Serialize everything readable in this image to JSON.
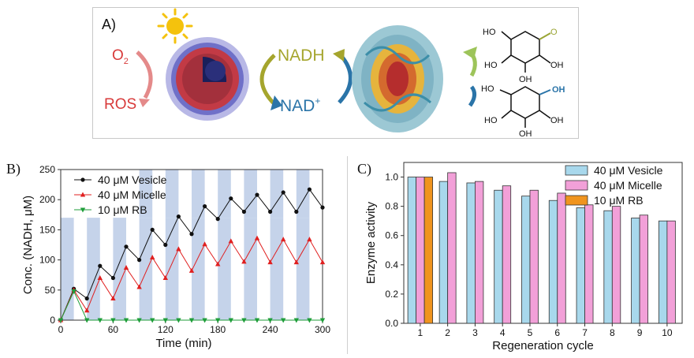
{
  "panel_a": {
    "label": "A)",
    "o2_label": "O",
    "o2_subscript": "2",
    "ros_label": "ROS",
    "nadh_label": "NADH",
    "nad_label": "NAD",
    "nad_superscript": "+",
    "colors": {
      "ros": "#d83a3a",
      "nadh": "#a5a52d",
      "nad": "#2a74a8",
      "sun": "#f4c20d",
      "arrow_green": "#9dc45a"
    },
    "molecules": {
      "top": {
        "groups": [
          "HO",
          "HO",
          "OH",
          "OH",
          "O"
        ]
      },
      "bottom": {
        "groups": [
          "HO",
          "OH",
          "HO",
          "OH",
          "OH"
        ]
      }
    }
  },
  "chart_data": [
    {
      "panel_label": "B)",
      "type": "line",
      "xlabel": "Time (min)",
      "ylabel": "Conc. (NADH, μM)",
      "xlim": [
        0,
        300
      ],
      "ylim": [
        0,
        250
      ],
      "xticks": [
        "0",
        "60",
        "120",
        "180",
        "240",
        "300"
      ],
      "yticks": [
        "0",
        "50",
        "100",
        "150",
        "200",
        "250"
      ],
      "legend_position": "top-left",
      "light_on_intervals": [
        [
          0,
          15
        ],
        [
          30,
          45
        ],
        [
          60,
          75
        ],
        [
          90,
          105
        ],
        [
          120,
          135
        ],
        [
          150,
          165
        ],
        [
          180,
          195
        ],
        [
          210,
          225
        ],
        [
          240,
          255
        ],
        [
          270,
          285
        ]
      ],
      "light_bar_color": "#c5d3ea",
      "series": [
        {
          "name": "40 μM  Vesicle",
          "color": "#111111",
          "marker": "circle",
          "x": [
            0,
            15,
            30,
            45,
            60,
            75,
            90,
            105,
            120,
            135,
            150,
            165,
            180,
            195,
            210,
            225,
            240,
            255,
            270,
            285,
            300
          ],
          "y": [
            0,
            52,
            36,
            90,
            70,
            122,
            100,
            150,
            125,
            172,
            143,
            189,
            168,
            202,
            180,
            208,
            180,
            212,
            180,
            217,
            187
          ]
        },
        {
          "name": "40 μM  Micelle",
          "color": "#e02020",
          "marker": "triangle-up",
          "x": [
            0,
            15,
            30,
            45,
            60,
            75,
            90,
            105,
            120,
            135,
            150,
            165,
            180,
            195,
            210,
            225,
            240,
            255,
            270,
            285,
            300
          ],
          "y": [
            0,
            50,
            16,
            70,
            36,
            87,
            55,
            104,
            70,
            118,
            82,
            126,
            93,
            131,
            97,
            136,
            96,
            134,
            96,
            134,
            96
          ]
        },
        {
          "name": "10 μM  RB",
          "color": "#1f9e3a",
          "marker": "triangle-down",
          "x": [
            0,
            15,
            30,
            45,
            60,
            75,
            90,
            105,
            120,
            135,
            150,
            165,
            180,
            195,
            210,
            225,
            240,
            255,
            270,
            285,
            300
          ],
          "y": [
            0,
            48,
            0,
            0,
            0,
            0,
            0,
            0,
            0,
            0,
            0,
            0,
            0,
            0,
            0,
            0,
            0,
            0,
            0,
            0,
            0
          ]
        }
      ]
    },
    {
      "panel_label": "C)",
      "type": "bar",
      "xlabel": "Regeneration cycle",
      "ylabel": "Enzyme activity",
      "ylim": [
        0,
        1.1
      ],
      "yticks": [
        "0.0",
        "0.2",
        "0.4",
        "0.6",
        "0.8",
        "1.0"
      ],
      "categories": [
        "1",
        "2",
        "3",
        "4",
        "5",
        "6",
        "7",
        "8",
        "9",
        "10"
      ],
      "legend_position": "top-right",
      "series": [
        {
          "name": "40 μM  Vesicle",
          "color": "#a8d8ec",
          "values": [
            1.0,
            0.97,
            0.96,
            0.91,
            0.87,
            0.84,
            0.79,
            0.77,
            0.72,
            0.7
          ]
        },
        {
          "name": "40 μM  Micelle",
          "color": "#f2a0d8",
          "values": [
            1.0,
            1.03,
            0.97,
            0.94,
            0.91,
            0.89,
            0.81,
            0.8,
            0.74,
            0.7
          ]
        },
        {
          "name": "10 μM  RB",
          "color": "#f0941e",
          "values": [
            1.0,
            null,
            null,
            null,
            null,
            null,
            null,
            null,
            null,
            null
          ]
        }
      ]
    }
  ]
}
